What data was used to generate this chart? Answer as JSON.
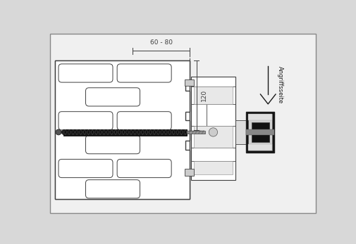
{
  "bg_color": "#d8d8d8",
  "panel_bg": "#f0f0f0",
  "wall_bg": "#ffffff",
  "line_color": "#404040",
  "dark_color": "#1a1a1a",
  "screw_dark": "#222222",
  "profile_fill": "#ffffff",
  "dim_color": "#404040",
  "annotation_text": "Angriffsseite",
  "dim_text_60_80": "60 - 80",
  "dim_text_120": "120",
  "figsize": [
    5.06,
    3.47
  ],
  "dpi": 100
}
